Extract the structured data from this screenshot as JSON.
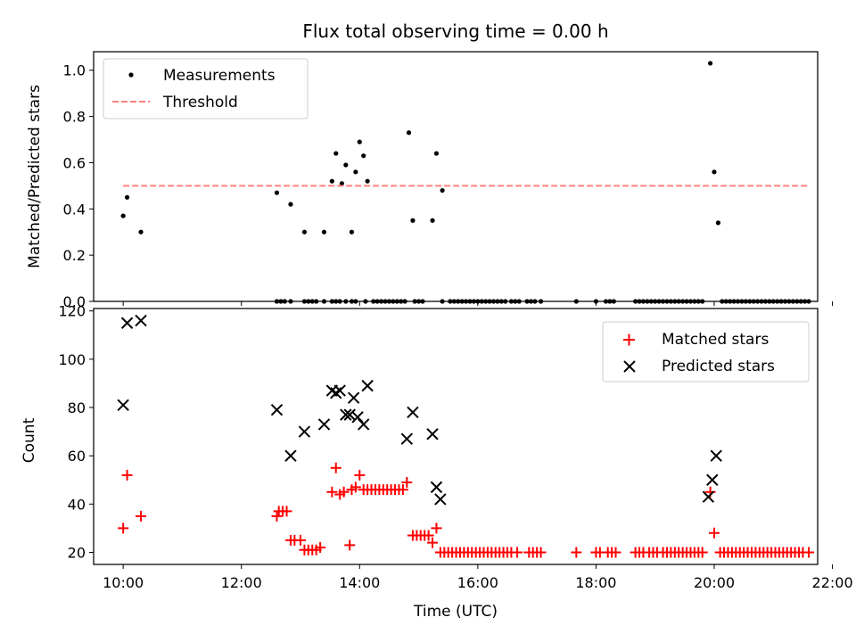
{
  "title": "Flux total observing time = 0.00 h",
  "chart_data": [
    {
      "type": "scatter",
      "ylabel": "Matched/Predicted stars",
      "xlabel": "",
      "xlim": [
        "09:30",
        "21:45"
      ],
      "ylim": [
        0,
        1.08
      ],
      "yticks": [
        "0.0",
        "0.2",
        "0.4",
        "0.6",
        "0.8",
        "1.0"
      ],
      "grid": false,
      "legend_position": "upper left",
      "series": [
        {
          "name": "Measurements",
          "marker": "dot",
          "color": "#000000",
          "points": [
            [
              "10:00",
              0.37
            ],
            [
              "10:04",
              0.45
            ],
            [
              "10:18",
              0.3
            ],
            [
              "12:36",
              0.47
            ],
            [
              "12:50",
              0.42
            ],
            [
              "13:04",
              0.3
            ],
            [
              "13:24",
              0.3
            ],
            [
              "13:32",
              0.52
            ],
            [
              "13:36",
              0.64
            ],
            [
              "13:42",
              0.51
            ],
            [
              "13:46",
              0.59
            ],
            [
              "13:52",
              0.3
            ],
            [
              "13:56",
              0.56
            ],
            [
              "14:00",
              0.69
            ],
            [
              "14:04",
              0.63
            ],
            [
              "14:08",
              0.52
            ],
            [
              "14:50",
              0.73
            ],
            [
              "14:54",
              0.35
            ],
            [
              "15:14",
              0.35
            ],
            [
              "15:18",
              0.64
            ],
            [
              "15:24",
              0.48
            ],
            [
              "19:56",
              1.03
            ],
            [
              "20:00",
              0.56
            ],
            [
              "20:04",
              0.34
            ],
            [
              "12:36",
              0
            ],
            [
              "12:40",
              0
            ],
            [
              "12:44",
              0
            ],
            [
              "12:50",
              0
            ],
            [
              "13:04",
              0
            ],
            [
              "13:08",
              0
            ],
            [
              "13:12",
              0
            ],
            [
              "13:16",
              0
            ],
            [
              "13:24",
              0
            ],
            [
              "13:32",
              0
            ],
            [
              "13:36",
              0
            ],
            [
              "13:40",
              0
            ],
            [
              "13:46",
              0
            ],
            [
              "13:52",
              0
            ],
            [
              "13:56",
              0
            ],
            [
              "14:06",
              0
            ],
            [
              "14:14",
              0
            ],
            [
              "14:18",
              0
            ],
            [
              "14:22",
              0
            ],
            [
              "14:26",
              0
            ],
            [
              "14:30",
              0
            ],
            [
              "14:34",
              0
            ],
            [
              "14:38",
              0
            ],
            [
              "14:42",
              0
            ],
            [
              "14:46",
              0
            ],
            [
              "14:56",
              0
            ],
            [
              "15:00",
              0
            ],
            [
              "15:04",
              0
            ],
            [
              "15:24",
              0
            ],
            [
              "15:32",
              0
            ],
            [
              "15:36",
              0
            ],
            [
              "15:40",
              0
            ],
            [
              "15:44",
              0
            ],
            [
              "15:48",
              0
            ],
            [
              "15:52",
              0
            ],
            [
              "15:56",
              0
            ],
            [
              "16:00",
              0
            ],
            [
              "16:04",
              0
            ],
            [
              "16:08",
              0
            ],
            [
              "16:12",
              0
            ],
            [
              "16:16",
              0
            ],
            [
              "16:20",
              0
            ],
            [
              "16:24",
              0
            ],
            [
              "16:28",
              0
            ],
            [
              "16:34",
              0
            ],
            [
              "16:38",
              0
            ],
            [
              "16:42",
              0
            ],
            [
              "16:50",
              0
            ],
            [
              "16:54",
              0
            ],
            [
              "16:58",
              0
            ],
            [
              "17:04",
              0
            ],
            [
              "17:40",
              0
            ],
            [
              "18:00",
              0
            ],
            [
              "18:10",
              0
            ],
            [
              "18:14",
              0
            ],
            [
              "18:18",
              0
            ],
            [
              "18:40",
              0
            ],
            [
              "18:44",
              0
            ],
            [
              "18:48",
              0
            ],
            [
              "18:52",
              0
            ],
            [
              "18:56",
              0
            ],
            [
              "19:00",
              0
            ],
            [
              "19:04",
              0
            ],
            [
              "19:08",
              0
            ],
            [
              "19:12",
              0
            ],
            [
              "19:16",
              0
            ],
            [
              "19:20",
              0
            ],
            [
              "19:24",
              0
            ],
            [
              "19:28",
              0
            ],
            [
              "19:32",
              0
            ],
            [
              "19:36",
              0
            ],
            [
              "19:40",
              0
            ],
            [
              "19:44",
              0
            ],
            [
              "19:48",
              0
            ],
            [
              "20:08",
              0
            ],
            [
              "20:12",
              0
            ],
            [
              "20:16",
              0
            ],
            [
              "20:20",
              0
            ],
            [
              "20:24",
              0
            ],
            [
              "20:28",
              0
            ],
            [
              "20:32",
              0
            ],
            [
              "20:36",
              0
            ],
            [
              "20:40",
              0
            ],
            [
              "20:44",
              0
            ],
            [
              "20:48",
              0
            ],
            [
              "20:52",
              0
            ],
            [
              "20:56",
              0
            ],
            [
              "21:00",
              0
            ],
            [
              "21:04",
              0
            ],
            [
              "21:08",
              0
            ],
            [
              "21:12",
              0
            ],
            [
              "21:16",
              0
            ],
            [
              "21:20",
              0
            ],
            [
              "21:24",
              0
            ],
            [
              "21:28",
              0
            ],
            [
              "21:32",
              0
            ],
            [
              "21:36",
              0
            ]
          ]
        },
        {
          "name": "Threshold",
          "type": "line",
          "style": "dashed",
          "color": "#ff7f7f",
          "points": [
            [
              "10:00",
              0.5
            ],
            [
              "21:36",
              0.5
            ]
          ]
        }
      ]
    },
    {
      "type": "scatter",
      "ylabel": "Count",
      "xlabel": "Time (UTC)",
      "xlim": [
        "09:30",
        "21:45"
      ],
      "ylim": [
        15,
        121
      ],
      "yticks": [
        "20",
        "40",
        "60",
        "80",
        "100",
        "120"
      ],
      "xticks": [
        "10:00",
        "12:00",
        "14:00",
        "16:00",
        "18:00",
        "20:00",
        "22:00"
      ],
      "grid": false,
      "legend_position": "upper right",
      "series": [
        {
          "name": "Matched stars",
          "marker": "plus",
          "color": "#ff0000",
          "points": [
            [
              "10:00",
              30
            ],
            [
              "10:04",
              52
            ],
            [
              "10:18",
              35
            ],
            [
              "12:36",
              35
            ],
            [
              "12:38",
              37
            ],
            [
              "12:42",
              37
            ],
            [
              "12:46",
              37
            ],
            [
              "12:50",
              25
            ],
            [
              "12:54",
              25
            ],
            [
              "13:00",
              25
            ],
            [
              "13:04",
              21
            ],
            [
              "13:08",
              21
            ],
            [
              "13:12",
              21
            ],
            [
              "13:16",
              21
            ],
            [
              "13:20",
              22
            ],
            [
              "13:32",
              45
            ],
            [
              "13:36",
              55
            ],
            [
              "13:40",
              44
            ],
            [
              "13:44",
              45
            ],
            [
              "13:50",
              23
            ],
            [
              "13:52",
              46
            ],
            [
              "13:56",
              47
            ],
            [
              "14:00",
              52
            ],
            [
              "14:04",
              46
            ],
            [
              "14:08",
              46
            ],
            [
              "14:12",
              46
            ],
            [
              "14:16",
              46
            ],
            [
              "14:20",
              46
            ],
            [
              "14:24",
              46
            ],
            [
              "14:28",
              46
            ],
            [
              "14:32",
              46
            ],
            [
              "14:36",
              46
            ],
            [
              "14:40",
              46
            ],
            [
              "14:44",
              46
            ],
            [
              "14:48",
              49
            ],
            [
              "14:54",
              27
            ],
            [
              "14:58",
              27
            ],
            [
              "15:02",
              27
            ],
            [
              "15:06",
              27
            ],
            [
              "15:10",
              27
            ],
            [
              "15:14",
              24
            ],
            [
              "15:18",
              30
            ],
            [
              "15:22",
              20
            ],
            [
              "15:26",
              20
            ],
            [
              "15:30",
              20
            ],
            [
              "15:34",
              20
            ],
            [
              "15:38",
              20
            ],
            [
              "15:42",
              20
            ],
            [
              "15:46",
              20
            ],
            [
              "15:50",
              20
            ],
            [
              "15:54",
              20
            ],
            [
              "15:58",
              20
            ],
            [
              "16:02",
              20
            ],
            [
              "16:06",
              20
            ],
            [
              "16:10",
              20
            ],
            [
              "16:14",
              20
            ],
            [
              "16:18",
              20
            ],
            [
              "16:22",
              20
            ],
            [
              "16:26",
              20
            ],
            [
              "16:30",
              20
            ],
            [
              "16:34",
              20
            ],
            [
              "16:40",
              20
            ],
            [
              "16:52",
              20
            ],
            [
              "16:56",
              20
            ],
            [
              "17:00",
              20
            ],
            [
              "17:04",
              20
            ],
            [
              "17:40",
              20
            ],
            [
              "18:00",
              20
            ],
            [
              "18:04",
              20
            ],
            [
              "18:12",
              20
            ],
            [
              "18:16",
              20
            ],
            [
              "18:20",
              20
            ],
            [
              "18:40",
              20
            ],
            [
              "18:44",
              20
            ],
            [
              "18:48",
              20
            ],
            [
              "18:54",
              20
            ],
            [
              "18:58",
              20
            ],
            [
              "19:02",
              20
            ],
            [
              "19:08",
              20
            ],
            [
              "19:12",
              20
            ],
            [
              "19:16",
              20
            ],
            [
              "19:20",
              20
            ],
            [
              "19:24",
              20
            ],
            [
              "19:28",
              20
            ],
            [
              "19:32",
              20
            ],
            [
              "19:36",
              20
            ],
            [
              "19:40",
              20
            ],
            [
              "19:44",
              20
            ],
            [
              "19:48",
              20
            ],
            [
              "19:56",
              45
            ],
            [
              "20:00",
              28
            ],
            [
              "20:06",
              20
            ],
            [
              "20:10",
              20
            ],
            [
              "20:14",
              20
            ],
            [
              "20:18",
              20
            ],
            [
              "20:22",
              20
            ],
            [
              "20:26",
              20
            ],
            [
              "20:30",
              20
            ],
            [
              "20:34",
              20
            ],
            [
              "20:38",
              20
            ],
            [
              "20:42",
              20
            ],
            [
              "20:46",
              20
            ],
            [
              "20:50",
              20
            ],
            [
              "20:54",
              20
            ],
            [
              "20:58",
              20
            ],
            [
              "21:02",
              20
            ],
            [
              "21:06",
              20
            ],
            [
              "21:10",
              20
            ],
            [
              "21:14",
              20
            ],
            [
              "21:18",
              20
            ],
            [
              "21:22",
              20
            ],
            [
              "21:26",
              20
            ],
            [
              "21:30",
              20
            ],
            [
              "21:36",
              20
            ]
          ]
        },
        {
          "name": "Predicted stars",
          "marker": "x",
          "color": "#000000",
          "points": [
            [
              "10:00",
              81
            ],
            [
              "10:04",
              115
            ],
            [
              "10:18",
              116
            ],
            [
              "12:36",
              79
            ],
            [
              "12:50",
              60
            ],
            [
              "13:04",
              70
            ],
            [
              "13:24",
              73
            ],
            [
              "13:32",
              87
            ],
            [
              "13:36",
              86
            ],
            [
              "13:40",
              87
            ],
            [
              "13:46",
              77
            ],
            [
              "13:50",
              77
            ],
            [
              "13:54",
              84
            ],
            [
              "13:58",
              76
            ],
            [
              "14:04",
              73
            ],
            [
              "14:08",
              89
            ],
            [
              "14:48",
              67
            ],
            [
              "14:54",
              78
            ],
            [
              "15:14",
              69
            ],
            [
              "15:18",
              47
            ],
            [
              "15:22",
              42
            ],
            [
              "19:54",
              43
            ],
            [
              "19:58",
              50
            ],
            [
              "20:02",
              60
            ]
          ]
        }
      ]
    }
  ]
}
